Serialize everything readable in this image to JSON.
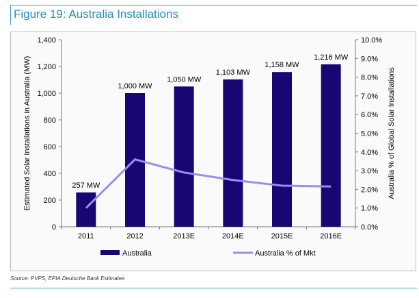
{
  "title": "Figure 19: Australia Installations",
  "source": "Source: PVPS, EPIA Deutsche Bank Estimates",
  "chart_data": {
    "type": "bar+line",
    "categories": [
      "2011",
      "2012",
      "2013E",
      "2014E",
      "2015E",
      "2016E"
    ],
    "series": [
      {
        "name": "Australia",
        "type": "bar",
        "axis": "left",
        "color": "#1a0673",
        "values": [
          257,
          1000,
          1050,
          1103,
          1158,
          1216
        ],
        "data_labels": [
          "257 MW",
          "1,000 MW",
          "1,050 MW",
          "1,103 MW",
          "1,158 MW",
          "1,216 MW"
        ]
      },
      {
        "name": "Australia % of Mkt",
        "type": "line",
        "axis": "right",
        "color": "#9b8cf2",
        "values": [
          1.0,
          3.6,
          2.9,
          2.5,
          2.2,
          2.15
        ]
      }
    ],
    "ylabel": "Estimated  Solar Installations in Australia (MW)",
    "y2label": "Australia % of Global Solar Installations",
    "ylim": [
      0,
      1400
    ],
    "y2lim": [
      0,
      10
    ],
    "yticks": [
      "0",
      "200",
      "400",
      "600",
      "800",
      "1,000",
      "1,200",
      "1,400"
    ],
    "y2ticks": [
      "0.0%",
      "1.0%",
      "2.0%",
      "3.0%",
      "4.0%",
      "5.0%",
      "6.0%",
      "7.0%",
      "8.0%",
      "9.0%",
      "10.0%"
    ],
    "legend": "bottom",
    "grid": false
  }
}
